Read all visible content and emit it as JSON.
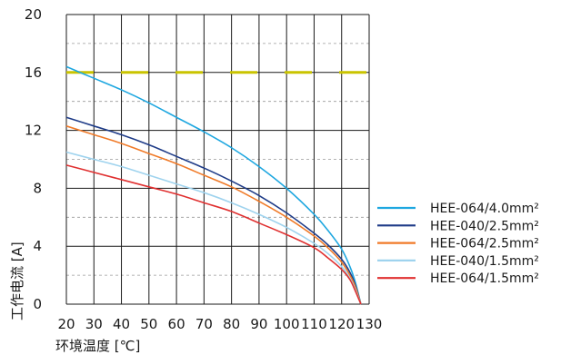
{
  "chart_data": {
    "type": "line",
    "title": "",
    "xlabel": "环境温度 [℃]",
    "ylabel": "工作电流 [A]",
    "xlim": [
      20,
      130
    ],
    "ylim": [
      0,
      20
    ],
    "x_ticks": [
      20,
      30,
      40,
      50,
      60,
      70,
      80,
      90,
      100,
      110,
      120,
      130
    ],
    "y_ticks": [
      0,
      4,
      8,
      12,
      16,
      20
    ],
    "grid": true,
    "legend_position": "right",
    "reference_line": {
      "value": 16,
      "color": "#c9c400",
      "style": "dashed"
    },
    "series": [
      {
        "name": "HEE-064/4.0mm²",
        "color": "#1ea7e0",
        "x": [
          20,
          30,
          40,
          50,
          60,
          70,
          80,
          90,
          100,
          110,
          115,
          120,
          123,
          125,
          127
        ],
        "y": [
          16.4,
          15.6,
          14.8,
          13.9,
          12.9,
          11.9,
          10.8,
          9.5,
          8.0,
          6.2,
          5.1,
          3.8,
          2.6,
          1.5,
          0
        ]
      },
      {
        "name": "HEE-040/2.5mm²",
        "color": "#1f3c88",
        "x": [
          20,
          30,
          40,
          50,
          60,
          70,
          80,
          90,
          100,
          110,
          115,
          120,
          123,
          125,
          127
        ],
        "y": [
          12.9,
          12.3,
          11.7,
          11.0,
          10.2,
          9.4,
          8.5,
          7.5,
          6.3,
          4.9,
          4.1,
          3.1,
          2.2,
          1.3,
          0
        ]
      },
      {
        "name": "HEE-064/2.5mm²",
        "color": "#f07a28",
        "x": [
          20,
          30,
          40,
          50,
          60,
          70,
          80,
          90,
          100,
          110,
          115,
          120,
          123,
          125,
          127
        ],
        "y": [
          12.3,
          11.7,
          11.1,
          10.4,
          9.7,
          8.9,
          8.1,
          7.1,
          6.0,
          4.7,
          3.9,
          2.9,
          2.0,
          1.2,
          0
        ]
      },
      {
        "name": "HEE-040/1.5mm²",
        "color": "#9fd3ee",
        "x": [
          20,
          30,
          40,
          50,
          60,
          70,
          80,
          90,
          100,
          110,
          115,
          120,
          123,
          125,
          127
        ],
        "y": [
          10.5,
          10.0,
          9.5,
          8.9,
          8.3,
          7.7,
          7.0,
          6.2,
          5.3,
          4.2,
          3.5,
          2.6,
          1.8,
          1.0,
          0
        ]
      },
      {
        "name": "HEE-064/1.5mm²",
        "color": "#e03030",
        "x": [
          20,
          30,
          40,
          50,
          60,
          70,
          80,
          90,
          100,
          110,
          115,
          120,
          123,
          125,
          127
        ],
        "y": [
          9.6,
          9.1,
          8.6,
          8.1,
          7.6,
          7.0,
          6.4,
          5.6,
          4.8,
          3.9,
          3.2,
          2.4,
          1.7,
          0.9,
          0
        ]
      }
    ]
  }
}
